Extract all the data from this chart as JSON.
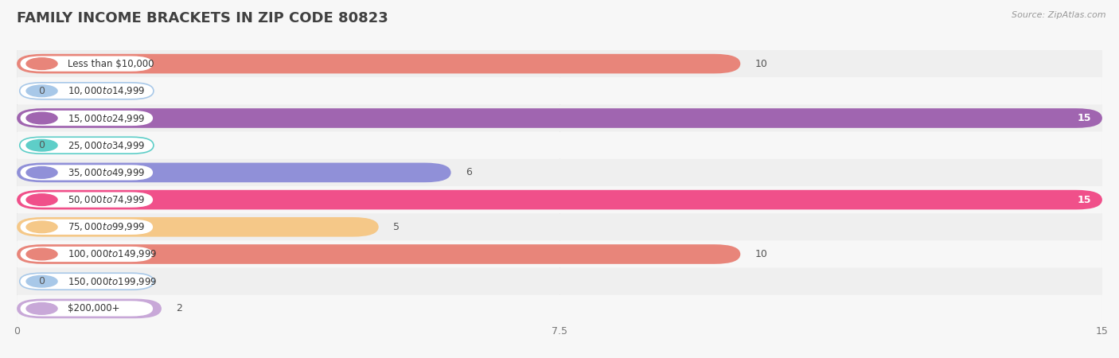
{
  "title": "FAMILY INCOME BRACKETS IN ZIP CODE 80823",
  "source": "Source: ZipAtlas.com",
  "categories": [
    "Less than $10,000",
    "$10,000 to $14,999",
    "$15,000 to $24,999",
    "$25,000 to $34,999",
    "$35,000 to $49,999",
    "$50,000 to $74,999",
    "$75,000 to $99,999",
    "$100,000 to $149,999",
    "$150,000 to $199,999",
    "$200,000+"
  ],
  "values": [
    10,
    0,
    15,
    0,
    6,
    15,
    5,
    10,
    0,
    2
  ],
  "bar_colors": [
    "#E8857A",
    "#A8C8E8",
    "#A065B0",
    "#5ECEC8",
    "#9090D8",
    "#F0508A",
    "#F5C888",
    "#E8857A",
    "#A8C8E8",
    "#C8A8D8"
  ],
  "xlim": [
    0,
    15
  ],
  "xticks": [
    0,
    7.5,
    15
  ],
  "background_color": "#f7f7f7",
  "row_bg_odd": "#efefef",
  "row_bg_even": "#f7f7f7",
  "title_fontsize": 13,
  "label_fontsize": 8.5,
  "value_fontsize": 9
}
